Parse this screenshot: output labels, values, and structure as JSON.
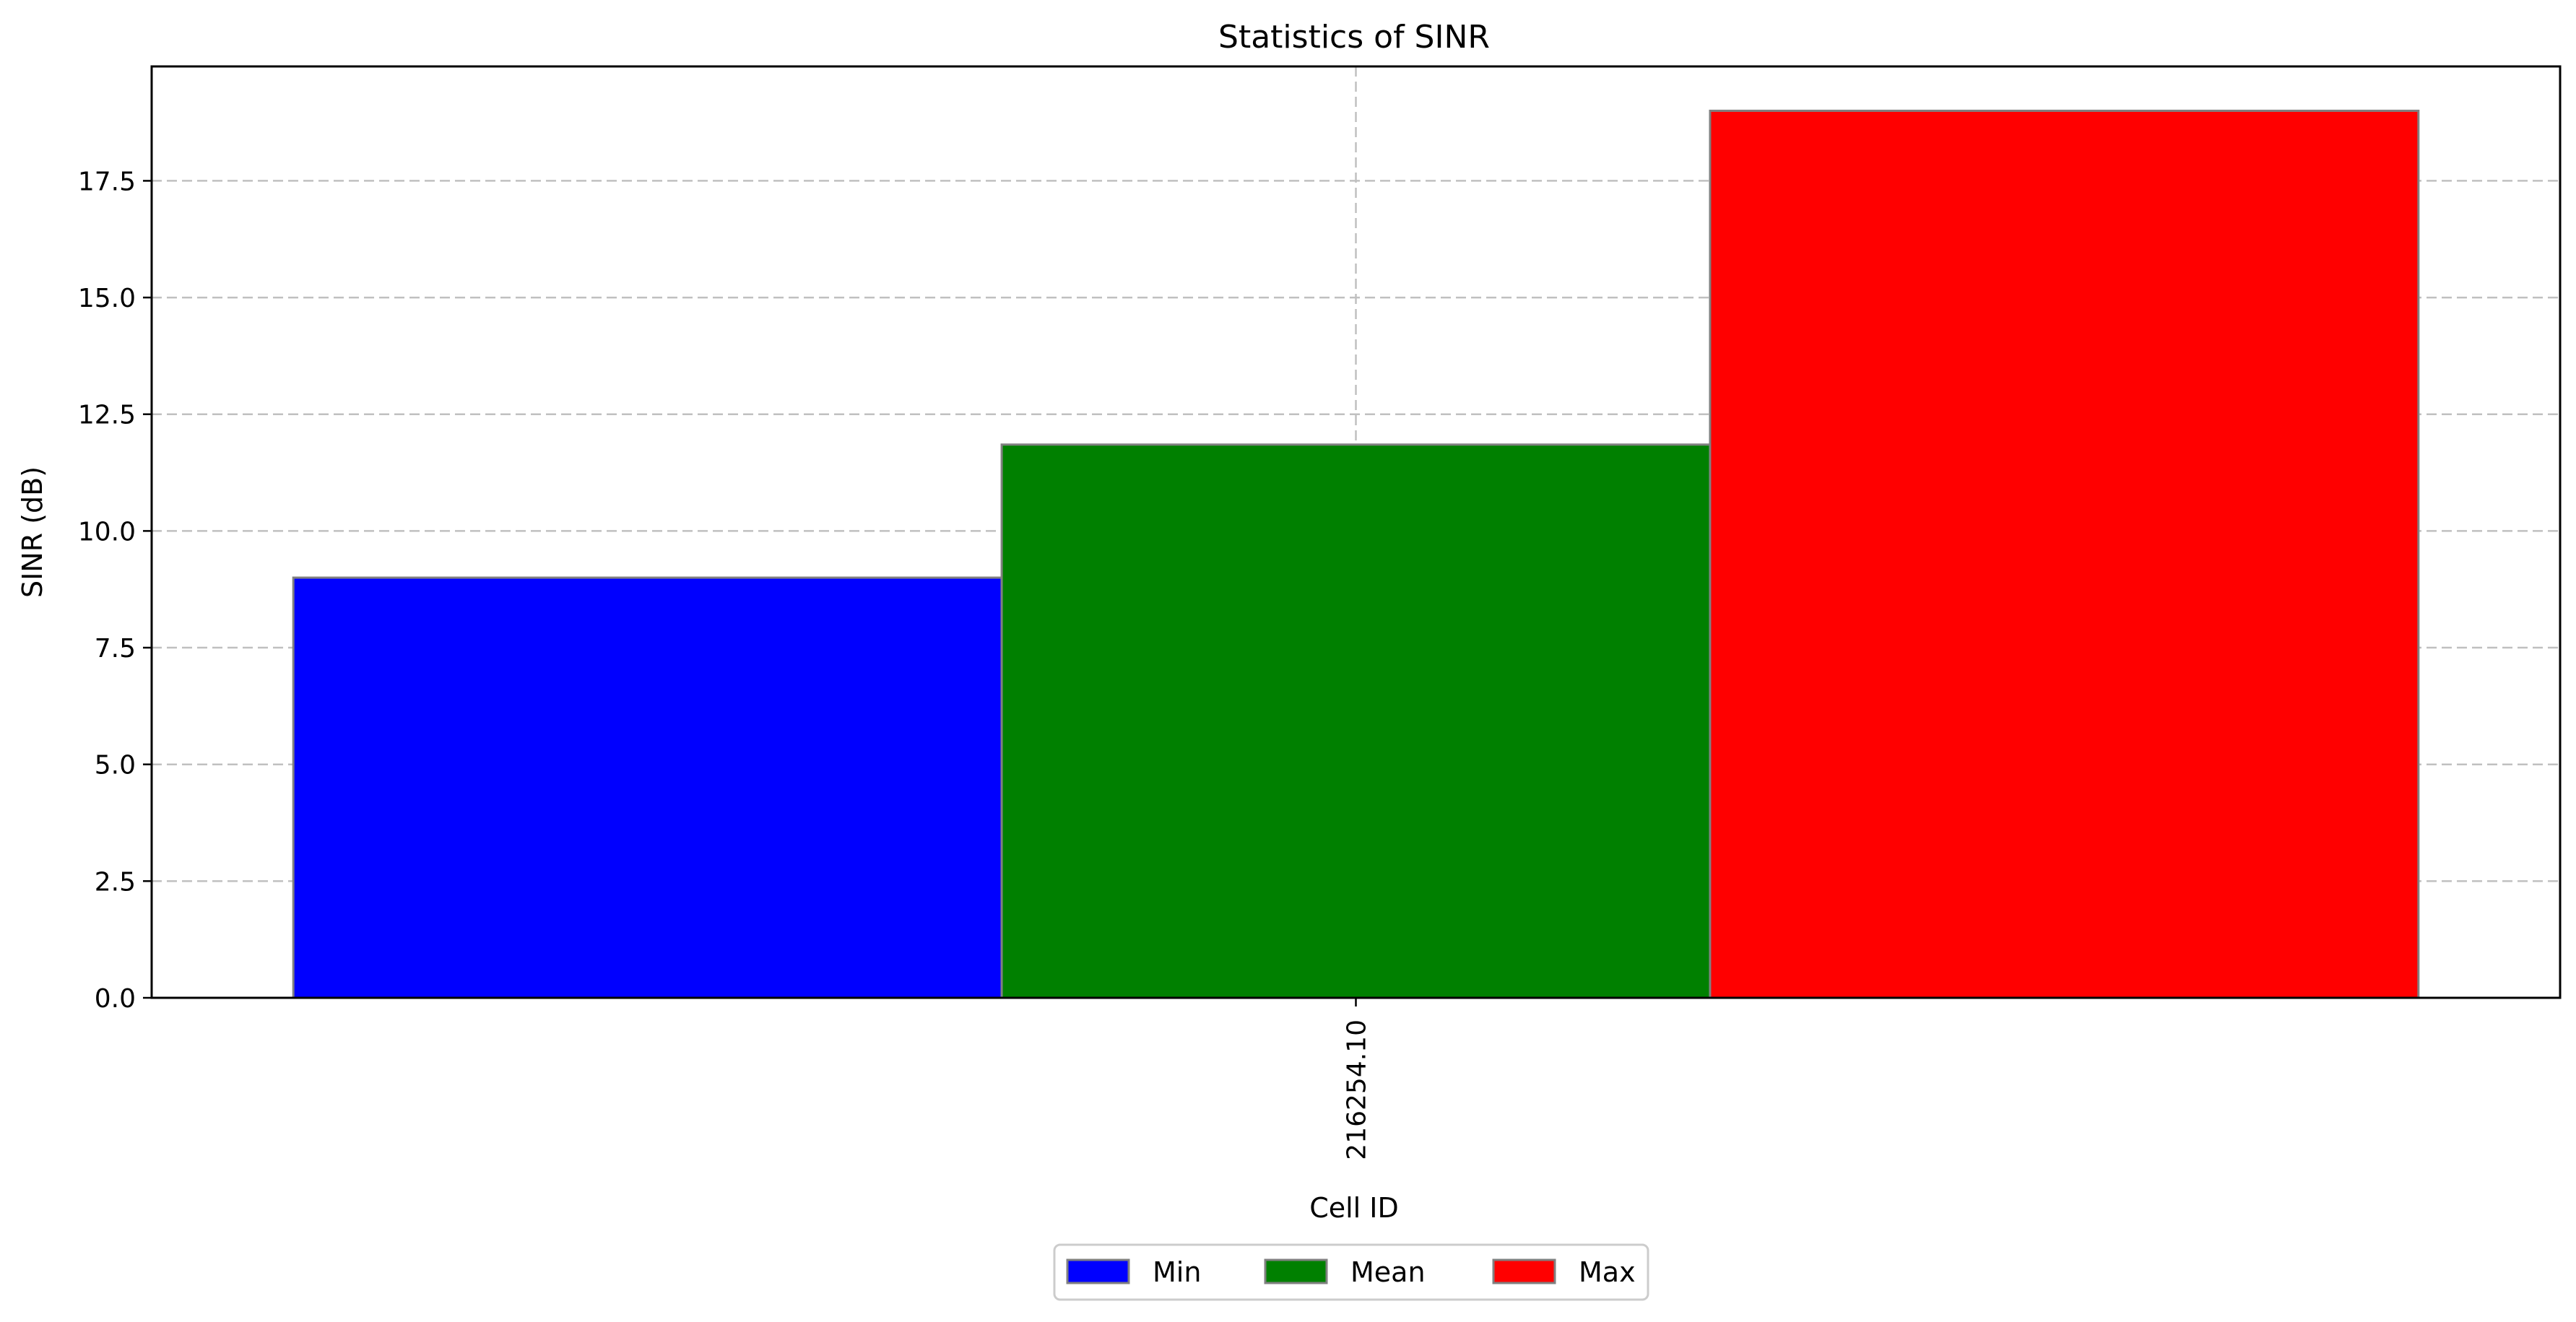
{
  "chart_data": {
    "type": "bar",
    "title": "Statistics of SINR",
    "xlabel": "Cell ID",
    "ylabel": "SINR (dB)",
    "categories": [
      "216254.10"
    ],
    "series": [
      {
        "name": "Min",
        "values": [
          9.0
        ],
        "color": "#0000ff"
      },
      {
        "name": "Mean",
        "values": [
          11.85
        ],
        "color": "#008000"
      },
      {
        "name": "Max",
        "values": [
          19.0
        ],
        "color": "#ff0000"
      }
    ],
    "ylim": [
      0,
      19.95
    ],
    "yticks": [
      0.0,
      2.5,
      5.0,
      7.5,
      10.0,
      12.5,
      15.0,
      17.5
    ],
    "ytick_labels": [
      "0.0",
      "2.5",
      "5.0",
      "7.5",
      "10.0",
      "12.5",
      "15.0",
      "17.5"
    ],
    "grid": true,
    "bar_edge_color": "#808080",
    "legend_position": "bottom-center"
  }
}
